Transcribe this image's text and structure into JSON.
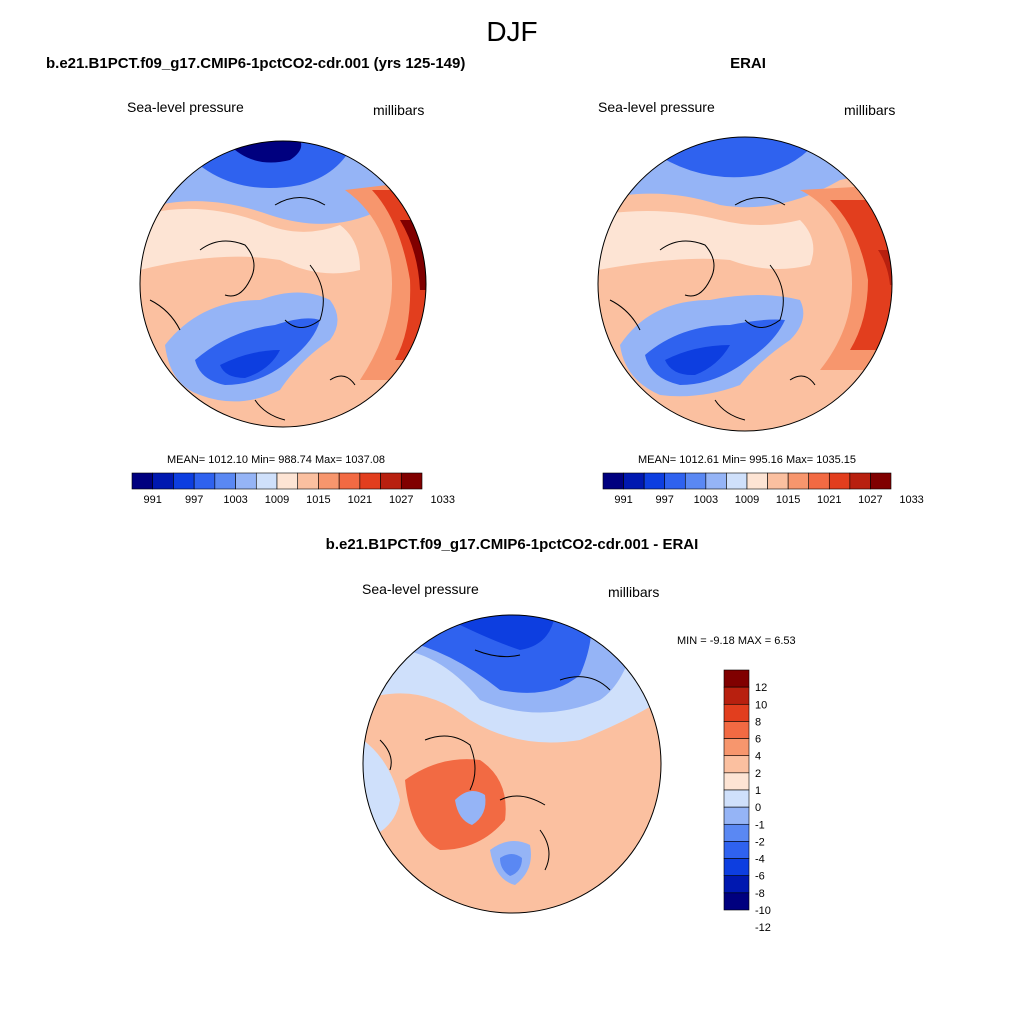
{
  "chart_data": {
    "type": "contour_map",
    "title": "DJF",
    "colors": {
      "levels11": [
        "#00007f",
        "#0018b0",
        "#0d3ee0",
        "#2f62ef",
        "#5a88f3",
        "#95b4f6",
        "#cfe0fb",
        "#fde4d4",
        "#fbc0a0",
        "#f7966d",
        "#f26a43",
        "#e23e1e",
        "#b8200f",
        "#800000"
      ],
      "diff": [
        "#00007f",
        "#0018b0",
        "#0d3ee0",
        "#2f62ef",
        "#5a88f3",
        "#95b4f6",
        "#cfe0fb",
        "#fde4d4",
        "#fbc0a0",
        "#f7966d",
        "#f26a43",
        "#e23e1e",
        "#b8200f",
        "#800000"
      ],
      "coast": "#000000"
    },
    "panels": [
      {
        "id": "model",
        "header": "b.e21.B1PCT.f09_g17.CMIP6-1pctCO2-cdr.001 (yrs 125-149)",
        "left_label": "Sea-level pressure",
        "right_label": "millibars",
        "stats": "MEAN= 1012.10  Min= 988.74  Max= 1037.08",
        "mean": 1012.1,
        "min": 988.74,
        "max": 1037.08,
        "colorbar_levels": [
          "991",
          "997",
          "1003",
          "1009",
          "1015",
          "1021",
          "1027",
          "1033"
        ]
      },
      {
        "id": "erai",
        "header": "ERAI",
        "left_label": "Sea-level pressure",
        "right_label": "millibars",
        "stats": "MEAN= 1012.61  Min= 995.16  Max= 1035.15",
        "mean": 1012.61,
        "min": 995.16,
        "max": 1035.15,
        "colorbar_levels": [
          "991",
          "997",
          "1003",
          "1009",
          "1015",
          "1021",
          "1027",
          "1033"
        ]
      },
      {
        "id": "diff",
        "header": "b.e21.B1PCT.f09_g17.CMIP6-1pctCO2-cdr.001 - ERAI",
        "left_label": "Sea-level pressure",
        "right_label": "millibars",
        "stats": "MIN =  -9.18 MAX =   6.53",
        "min": -9.18,
        "max": 6.53,
        "colorbar_levels": [
          "12",
          "10",
          "8",
          "6",
          "4",
          "2",
          "1",
          "0",
          "-1",
          "-2",
          "-4",
          "-6",
          "-8",
          "-10",
          "-12"
        ]
      }
    ]
  }
}
